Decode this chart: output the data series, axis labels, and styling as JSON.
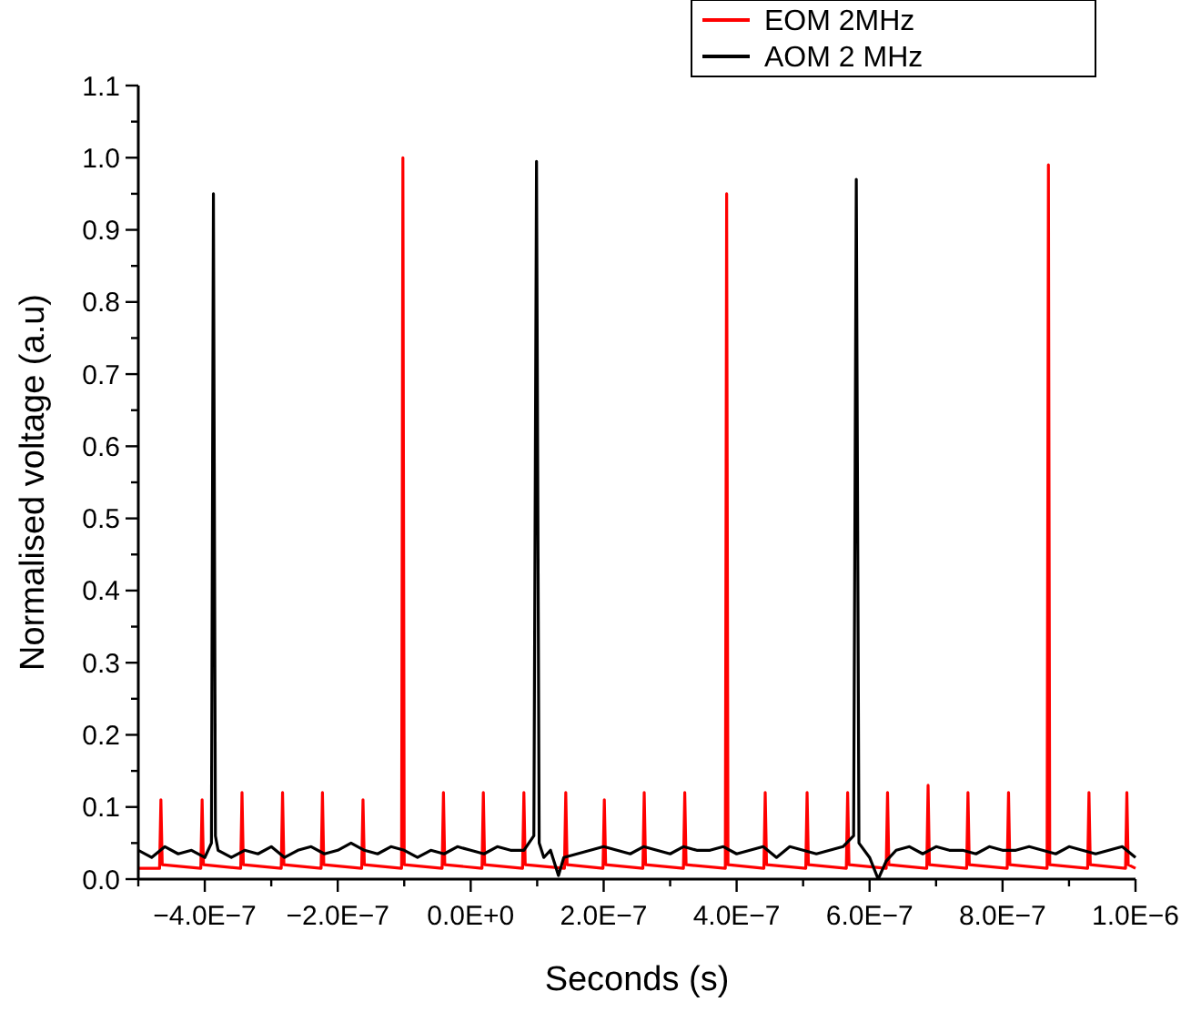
{
  "chart_data": {
    "type": "line",
    "xlabel": "Seconds (s)",
    "ylabel": "Normalised voltage (a.u)",
    "legend": "top right",
    "grid": false,
    "marker": "none",
    "line_style": "solid",
    "xlim": [
      -5e-07,
      1e-06
    ],
    "ylim": [
      0,
      1.1
    ],
    "xticks": [
      {
        "value": -5e-07,
        "label": null
      },
      {
        "value": -4e-07,
        "label": "−4.0E−7"
      },
      {
        "value": -3e-07,
        "label": null
      },
      {
        "value": -2e-07,
        "label": "−2.0E−7"
      },
      {
        "value": -1e-07,
        "label": null
      },
      {
        "value": 0,
        "label": "0.0E+0"
      },
      {
        "value": 1e-07,
        "label": null
      },
      {
        "value": 2e-07,
        "label": "2.0E−7"
      },
      {
        "value": 3e-07,
        "label": null
      },
      {
        "value": 4e-07,
        "label": "4.0E−7"
      },
      {
        "value": 5e-07,
        "label": null
      },
      {
        "value": 6e-07,
        "label": "6.0E−7"
      },
      {
        "value": 7e-07,
        "label": null
      },
      {
        "value": 8e-07,
        "label": "8.0E−7"
      },
      {
        "value": 9e-07,
        "label": null
      },
      {
        "value": 1e-06,
        "label": "1.0E−6"
      }
    ],
    "yticks": [
      {
        "value": 0,
        "label": "0.0"
      },
      {
        "value": 0.05,
        "label": null
      },
      {
        "value": 0.1,
        "label": "0.1"
      },
      {
        "value": 0.15,
        "label": null
      },
      {
        "value": 0.2,
        "label": "0.2"
      },
      {
        "value": 0.25,
        "label": null
      },
      {
        "value": 0.3,
        "label": "0.3"
      },
      {
        "value": 0.35,
        "label": null
      },
      {
        "value": 0.4,
        "label": "0.4"
      },
      {
        "value": 0.45,
        "label": null
      },
      {
        "value": 0.5,
        "label": "0.5"
      },
      {
        "value": 0.55,
        "label": null
      },
      {
        "value": 0.6,
        "label": "0.6"
      },
      {
        "value": 0.65,
        "label": null
      },
      {
        "value": 0.7,
        "label": "0.7"
      },
      {
        "value": 0.75,
        "label": null
      },
      {
        "value": 0.8,
        "label": "0.8"
      },
      {
        "value": 0.85,
        "label": null
      },
      {
        "value": 0.9,
        "label": "0.9"
      },
      {
        "value": 0.95,
        "label": null
      },
      {
        "value": 1,
        "label": "1.0"
      },
      {
        "value": 1.05,
        "label": null
      },
      {
        "value": 1.1,
        "label": "1.1"
      }
    ],
    "series": [
      {
        "name": "EOM 2MHz",
        "color": "#ff0000",
        "x": [
          -5e-07,
          -4.68e-07,
          -4.66e-07,
          -4.64e-07,
          -4.06e-07,
          -4.04e-07,
          -4.02e-07,
          -3.46e-07,
          -3.44e-07,
          -3.42e-07,
          -2.85e-07,
          -2.83e-07,
          -2.81e-07,
          -2.25e-07,
          -2.23e-07,
          -2.21e-07,
          -1.64e-07,
          -1.62e-07,
          -1.6e-07,
          -1.04e-07,
          -1.02e-07,
          -1e-07,
          -4.3e-08,
          -4.1e-08,
          -3.9e-08,
          1.7e-08,
          1.9e-08,
          2.1e-08,
          7.8e-08,
          8e-08,
          8.2e-08,
          1.41e-07,
          1.43e-07,
          1.45e-07,
          1.99e-07,
          2.01e-07,
          2.03e-07,
          2.59e-07,
          2.61e-07,
          2.63e-07,
          3.2e-07,
          3.22e-07,
          3.24e-07,
          3.83e-07,
          3.85e-07,
          3.87e-07,
          4.41e-07,
          4.43e-07,
          4.45e-07,
          5.04e-07,
          5.06e-07,
          5.08e-07,
          5.65e-07,
          5.67e-07,
          5.69e-07,
          6.25e-07,
          6.27e-07,
          6.29e-07,
          6.86e-07,
          6.88e-07,
          6.9e-07,
          7.46e-07,
          7.48e-07,
          7.5e-07,
          8.07e-07,
          8.09e-07,
          8.11e-07,
          8.67e-07,
          8.69e-07,
          8.71e-07,
          9.28e-07,
          9.3e-07,
          9.32e-07,
          9.85e-07,
          9.87e-07,
          9.89e-07,
          1e-06
        ],
        "values": [
          0.015,
          0.015,
          0.11,
          0.02,
          0.015,
          0.11,
          0.02,
          0.015,
          0.12,
          0.02,
          0.015,
          0.12,
          0.02,
          0.015,
          0.12,
          0.02,
          0.015,
          0.11,
          0.02,
          0.015,
          1.0,
          0.02,
          0.015,
          0.12,
          0.02,
          0.015,
          0.12,
          0.02,
          0.015,
          0.12,
          0.02,
          0.015,
          0.12,
          0.02,
          0.015,
          0.11,
          0.02,
          0.015,
          0.12,
          0.02,
          0.015,
          0.12,
          0.02,
          0.015,
          0.95,
          0.02,
          0.015,
          0.12,
          0.02,
          0.015,
          0.12,
          0.02,
          0.015,
          0.12,
          0.02,
          0.015,
          0.12,
          0.02,
          0.015,
          0.13,
          0.02,
          0.015,
          0.12,
          0.02,
          0.015,
          0.12,
          0.02,
          0.015,
          0.99,
          0.02,
          0.015,
          0.12,
          0.02,
          0.015,
          0.12,
          0.02,
          0.015
        ]
      },
      {
        "name": "AOM 2 MHz",
        "color": "#000000",
        "x": [
          -5e-07,
          -4.8e-07,
          -4.6e-07,
          -4.4e-07,
          -4.2e-07,
          -4e-07,
          -3.9e-07,
          -3.87e-07,
          -3.84e-07,
          -3.8e-07,
          -3.6e-07,
          -3.4e-07,
          -3.2e-07,
          -3e-07,
          -2.8e-07,
          -2.6e-07,
          -2.4e-07,
          -2.2e-07,
          -2e-07,
          -1.8e-07,
          -1.6e-07,
          -1.4e-07,
          -1.2e-07,
          -1e-07,
          -8e-08,
          -6e-08,
          -4e-08,
          -2e-08,
          0,
          2e-08,
          4e-08,
          6e-08,
          8e-08,
          9.5e-08,
          9.9e-08,
          1.03e-07,
          1.1e-07,
          1.2e-07,
          1.32e-07,
          1.4e-07,
          1.6e-07,
          1.8e-07,
          2e-07,
          2.2e-07,
          2.4e-07,
          2.6e-07,
          2.8e-07,
          3e-07,
          3.2e-07,
          3.4e-07,
          3.6e-07,
          3.8e-07,
          4e-07,
          4.2e-07,
          4.4e-07,
          4.6e-07,
          4.8e-07,
          5e-07,
          5.2e-07,
          5.4e-07,
          5.6e-07,
          5.76e-07,
          5.8e-07,
          5.84e-07,
          6e-07,
          6.13e-07,
          6.25e-07,
          6.4e-07,
          6.6e-07,
          6.8e-07,
          7e-07,
          7.2e-07,
          7.4e-07,
          7.6e-07,
          7.8e-07,
          8e-07,
          8.2e-07,
          8.4e-07,
          8.6e-07,
          8.8e-07,
          9e-07,
          9.2e-07,
          9.4e-07,
          9.6e-07,
          9.8e-07,
          1e-06
        ],
        "values": [
          0.04,
          0.03,
          0.045,
          0.035,
          0.04,
          0.03,
          0.05,
          0.95,
          0.06,
          0.04,
          0.03,
          0.04,
          0.035,
          0.045,
          0.03,
          0.04,
          0.045,
          0.035,
          0.04,
          0.05,
          0.04,
          0.035,
          0.045,
          0.04,
          0.03,
          0.04,
          0.035,
          0.045,
          0.04,
          0.035,
          0.045,
          0.04,
          0.04,
          0.06,
          0.995,
          0.05,
          0.03,
          0.04,
          0.005,
          0.03,
          0.035,
          0.04,
          0.045,
          0.04,
          0.035,
          0.045,
          0.04,
          0.035,
          0.045,
          0.04,
          0.04,
          0.045,
          0.035,
          0.04,
          0.045,
          0.03,
          0.045,
          0.04,
          0.035,
          0.04,
          0.045,
          0.06,
          0.97,
          0.05,
          0.03,
          0,
          0.025,
          0.04,
          0.045,
          0.035,
          0.045,
          0.04,
          0.04,
          0.035,
          0.045,
          0.04,
          0.04,
          0.045,
          0.04,
          0.035,
          0.045,
          0.04,
          0.035,
          0.04,
          0.045,
          0.03
        ]
      }
    ]
  }
}
